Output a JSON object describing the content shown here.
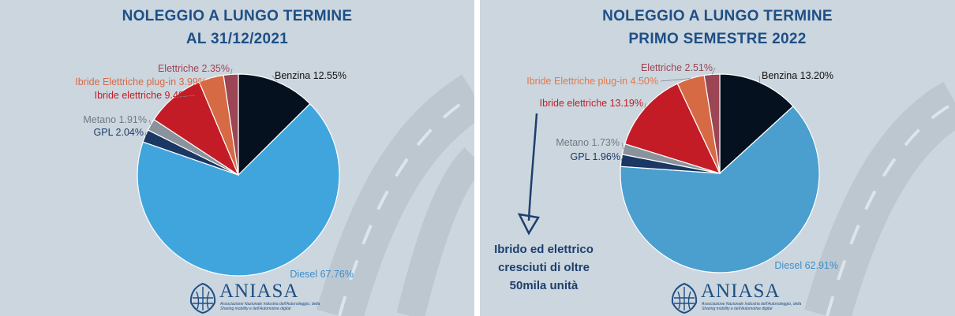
{
  "charts": [
    {
      "title_line1": "NOLEGGIO A LUNGO TERMINE",
      "title_line2": "AL 31/12/2021",
      "chart_data": {
        "type": "pie",
        "title": "NOLEGGIO A LUNGO TERMINE AL 31/12/2021",
        "slices": [
          {
            "label": "Benzina 12.55%",
            "name": "Benzina",
            "value": 12.55,
            "color": "#06111f",
            "label_color": "#111111"
          },
          {
            "label": "Diesel 67.76%",
            "name": "Diesel",
            "value": 67.76,
            "color": "#41a5dd",
            "label_color": "#3a8fcb"
          },
          {
            "label": "GPL 2.04%",
            "name": "GPL",
            "value": 2.04,
            "color": "#1b3864",
            "label_color": "#1d3a66"
          },
          {
            "label": "Metano 1.91%",
            "name": "Metano",
            "value": 1.91,
            "color": "#8a939b",
            "label_color": "#6f7a84"
          },
          {
            "label": "Ibride elettriche 9.40%",
            "name": "Ibride elettriche",
            "value": 9.4,
            "color": "#c41c26",
            "label_color": "#c41c26"
          },
          {
            "label": "Ibride Elettriche plug-in 3.99%",
            "name": "Ibride Elettriche plug-in",
            "value": 3.99,
            "color": "#d66a45",
            "label_color": "#d66a45"
          },
          {
            "label": "Elettriche 2.35%",
            "name": "Elettriche",
            "value": 2.35,
            "color": "#9c4554",
            "label_color": "#9c4554"
          }
        ]
      }
    },
    {
      "title_line1": "NOLEGGIO A LUNGO TERMINE",
      "title_line2": "PRIMO SEMESTRE 2022",
      "chart_data": {
        "type": "pie",
        "title": "NOLEGGIO A LUNGO TERMINE PRIMO SEMESTRE 2022",
        "slices": [
          {
            "label": "Benzina 13.20%",
            "name": "Benzina",
            "value": 13.2,
            "color": "#06111f",
            "label_color": "#111111"
          },
          {
            "label": "Diesel 62.91%",
            "name": "Diesel",
            "value": 62.91,
            "color": "#4a9fcf",
            "label_color": "#3a8fcb"
          },
          {
            "label": "GPL 1.96%",
            "name": "GPL",
            "value": 1.96,
            "color": "#1b3864",
            "label_color": "#1d3a66"
          },
          {
            "label": "Metano 1.73%",
            "name": "Metano",
            "value": 1.73,
            "color": "#8a939b",
            "label_color": "#6f7a84"
          },
          {
            "label": "Ibride elettriche 13.19%",
            "name": "Ibride elettriche",
            "value": 13.19,
            "color": "#c41c26",
            "label_color": "#c41c26"
          },
          {
            "label": "Ibride Elettriche plug-in 4.50%",
            "name": "Ibride Elettriche plug-in",
            "value": 4.5,
            "color": "#d66a45",
            "label_color": "#e0794f"
          },
          {
            "label": "Elettriche 2.51%",
            "name": "Elettriche",
            "value": 2.51,
            "color": "#9c4554",
            "label_color": "#9c4554"
          }
        ]
      }
    }
  ],
  "callout": {
    "line1": "Ibrido ed elettrico",
    "line2": "cresciuti di oltre",
    "line3": "50mila unità"
  },
  "logo": {
    "name": "ANIASA",
    "subtitle": "Associazione Nazionale Industria dell'Autonoleggio, della Sharing mobility e dell'Automotive digital",
    "color": "#1d4f86"
  },
  "colors": {
    "background": "#ccd6de",
    "title": "#1d4f86"
  }
}
